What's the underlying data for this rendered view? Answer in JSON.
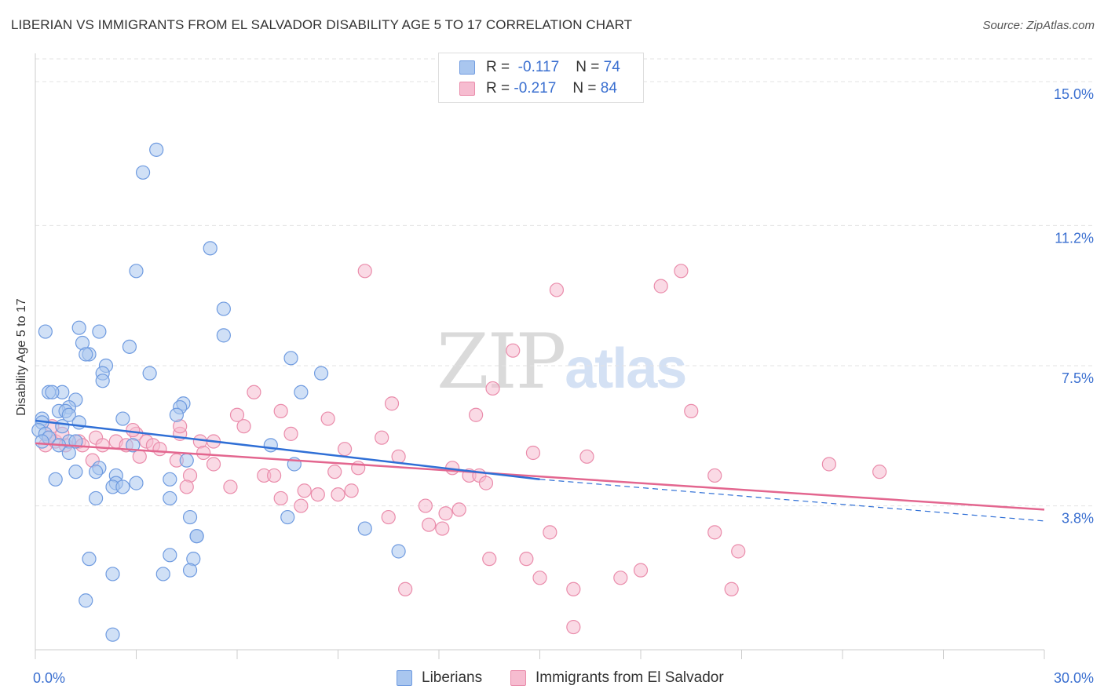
{
  "title": "LIBERIAN VS IMMIGRANTS FROM EL SALVADOR DISABILITY AGE 5 TO 17 CORRELATION CHART",
  "source": "Source: ZipAtlas.com",
  "watermark": {
    "zip": "ZIP",
    "atlas": "atlas"
  },
  "legend": {
    "rows": [
      {
        "r_label": "R =",
        "r_value": "-0.117",
        "n_label": "N =",
        "n_value": "74",
        "color": "#7aa6e8"
      },
      {
        "r_label": "R =",
        "r_value": "-0.217",
        "n_label": "N =",
        "n_value": "84",
        "color": "#f0a0bc"
      }
    ]
  },
  "bottom_legend": {
    "series1": "Liberians",
    "series2": "Immigrants from El Salvador"
  },
  "colors": {
    "blue_fill": "#a9c6ef",
    "blue_stroke": "#6f9be0",
    "blue_line": "#2f6fd6",
    "pink_fill": "#f6bcd0",
    "pink_stroke": "#ea8cab",
    "pink_line": "#e3668f",
    "grid": "#e3e3e3",
    "tick_label": "#3a6fd0"
  },
  "chart_data": {
    "type": "scatter",
    "title": "LIBERIAN VS IMMIGRANTS FROM EL SALVADOR DISABILITY AGE 5 TO 17 CORRELATION CHART",
    "xlabel": "",
    "ylabel": "Disability Age 5 to 17",
    "xlim": [
      0,
      30
    ],
    "ylim": [
      0,
      15.6
    ],
    "x_tick_labels": [
      "0.0%",
      "30.0%"
    ],
    "y_ticks": [
      3.8,
      7.5,
      11.2,
      15.0
    ],
    "y_tick_labels": [
      "3.8%",
      "7.5%",
      "11.2%",
      "15.0%"
    ],
    "grid": true,
    "legend_position": "top-center",
    "series": [
      {
        "name": "Liberians",
        "r": -0.117,
        "n": 74,
        "trend": {
          "x": [
            0,
            15
          ],
          "y": [
            6.05,
            4.5
          ],
          "extended_to": [
            30,
            3.4
          ]
        },
        "points": [
          [
            3.6,
            13.2
          ],
          [
            3.2,
            12.6
          ],
          [
            5.2,
            10.6
          ],
          [
            3.0,
            10.0
          ],
          [
            5.6,
            9.0
          ],
          [
            0.3,
            8.4
          ],
          [
            1.3,
            8.5
          ],
          [
            1.9,
            8.4
          ],
          [
            5.6,
            8.3
          ],
          [
            1.4,
            8.1
          ],
          [
            1.6,
            7.8
          ],
          [
            1.5,
            7.8
          ],
          [
            2.8,
            8.0
          ],
          [
            7.6,
            7.7
          ],
          [
            2.1,
            7.5
          ],
          [
            2.0,
            7.3
          ],
          [
            3.4,
            7.3
          ],
          [
            8.5,
            7.3
          ],
          [
            2.0,
            7.1
          ],
          [
            0.4,
            6.8
          ],
          [
            0.8,
            6.8
          ],
          [
            0.5,
            6.8
          ],
          [
            7.9,
            6.8
          ],
          [
            1.2,
            6.6
          ],
          [
            4.4,
            6.5
          ],
          [
            4.3,
            6.4
          ],
          [
            1.0,
            6.4
          ],
          [
            0.7,
            6.3
          ],
          [
            0.9,
            6.3
          ],
          [
            1.0,
            6.2
          ],
          [
            4.2,
            6.2
          ],
          [
            2.6,
            6.1
          ],
          [
            0.2,
            6.1
          ],
          [
            0.2,
            6.0
          ],
          [
            1.3,
            6.0
          ],
          [
            0.8,
            5.9
          ],
          [
            0.1,
            5.8
          ],
          [
            0.3,
            5.7
          ],
          [
            0.4,
            5.6
          ],
          [
            0.2,
            5.5
          ],
          [
            1.0,
            5.5
          ],
          [
            1.2,
            5.5
          ],
          [
            0.7,
            5.4
          ],
          [
            2.9,
            5.4
          ],
          [
            7.0,
            5.4
          ],
          [
            1.0,
            5.2
          ],
          [
            4.5,
            5.0
          ],
          [
            7.7,
            4.9
          ],
          [
            1.9,
            4.8
          ],
          [
            1.8,
            4.7
          ],
          [
            1.2,
            4.7
          ],
          [
            2.4,
            4.6
          ],
          [
            0.6,
            4.5
          ],
          [
            4.0,
            4.5
          ],
          [
            2.4,
            4.4
          ],
          [
            3.0,
            4.4
          ],
          [
            2.3,
            4.3
          ],
          [
            2.6,
            4.3
          ],
          [
            1.8,
            4.0
          ],
          [
            4.0,
            4.0
          ],
          [
            4.6,
            3.5
          ],
          [
            7.5,
            3.5
          ],
          [
            9.8,
            3.2
          ],
          [
            4.8,
            3.0
          ],
          [
            4.8,
            3.0
          ],
          [
            10.8,
            2.6
          ],
          [
            4.0,
            2.5
          ],
          [
            1.6,
            2.4
          ],
          [
            4.7,
            2.4
          ],
          [
            4.6,
            2.1
          ],
          [
            3.8,
            2.0
          ],
          [
            2.3,
            2.0
          ],
          [
            1.5,
            1.3
          ],
          [
            2.3,
            0.4
          ]
        ]
      },
      {
        "name": "Immigrants from El Salvador",
        "r": -0.217,
        "n": 84,
        "trend": {
          "x": [
            0,
            30
          ],
          "y": [
            5.45,
            3.7
          ]
        },
        "points": [
          [
            9.8,
            10.0
          ],
          [
            19.2,
            10.0
          ],
          [
            18.6,
            9.6
          ],
          [
            15.5,
            9.5
          ],
          [
            14.2,
            7.9
          ],
          [
            6.5,
            6.8
          ],
          [
            13.6,
            6.9
          ],
          [
            10.6,
            6.5
          ],
          [
            7.3,
            6.3
          ],
          [
            6.0,
            6.2
          ],
          [
            13.1,
            6.2
          ],
          [
            19.5,
            6.3
          ],
          [
            8.7,
            6.1
          ],
          [
            6.2,
            5.9
          ],
          [
            0.5,
            5.9
          ],
          [
            7.6,
            5.7
          ],
          [
            4.3,
            5.7
          ],
          [
            3.0,
            5.7
          ],
          [
            10.3,
            5.6
          ],
          [
            0.4,
            5.6
          ],
          [
            1.3,
            5.5
          ],
          [
            1.8,
            5.6
          ],
          [
            2.4,
            5.5
          ],
          [
            3.3,
            5.5
          ],
          [
            4.9,
            5.5
          ],
          [
            5.3,
            5.5
          ],
          [
            0.3,
            5.4
          ],
          [
            0.6,
            5.5
          ],
          [
            1.4,
            5.4
          ],
          [
            2.0,
            5.4
          ],
          [
            2.7,
            5.4
          ],
          [
            3.5,
            5.4
          ],
          [
            0.9,
            5.4
          ],
          [
            3.7,
            5.3
          ],
          [
            5.0,
            5.2
          ],
          [
            9.2,
            5.3
          ],
          [
            14.8,
            5.2
          ],
          [
            10.8,
            5.1
          ],
          [
            16.4,
            5.1
          ],
          [
            1.7,
            5.0
          ],
          [
            3.1,
            5.1
          ],
          [
            4.2,
            5.0
          ],
          [
            5.3,
            4.9
          ],
          [
            12.4,
            4.8
          ],
          [
            23.6,
            4.9
          ],
          [
            9.6,
            4.8
          ],
          [
            8.9,
            4.7
          ],
          [
            4.6,
            4.6
          ],
          [
            6.8,
            4.6
          ],
          [
            7.1,
            4.6
          ],
          [
            25.1,
            4.7
          ],
          [
            12.9,
            4.6
          ],
          [
            13.2,
            4.6
          ],
          [
            20.2,
            4.6
          ],
          [
            13.4,
            4.4
          ],
          [
            4.5,
            4.3
          ],
          [
            5.8,
            4.3
          ],
          [
            8.0,
            4.2
          ],
          [
            9.4,
            4.2
          ],
          [
            8.4,
            4.1
          ],
          [
            9.0,
            4.1
          ],
          [
            7.3,
            4.0
          ],
          [
            7.9,
            3.8
          ],
          [
            11.6,
            3.8
          ],
          [
            12.6,
            3.7
          ],
          [
            12.2,
            3.6
          ],
          [
            10.5,
            3.5
          ],
          [
            11.7,
            3.3
          ],
          [
            12.1,
            3.2
          ],
          [
            15.3,
            3.1
          ],
          [
            20.2,
            3.1
          ],
          [
            20.9,
            2.6
          ],
          [
            13.5,
            2.4
          ],
          [
            14.6,
            2.4
          ],
          [
            15.0,
            1.9
          ],
          [
            17.4,
            1.9
          ],
          [
            18.0,
            2.1
          ],
          [
            11.0,
            1.6
          ],
          [
            16.0,
            1.6
          ],
          [
            20.7,
            1.6
          ],
          [
            16.0,
            0.6
          ],
          [
            4.3,
            5.9
          ],
          [
            0.8,
            5.7
          ],
          [
            2.9,
            5.8
          ]
        ]
      }
    ]
  }
}
